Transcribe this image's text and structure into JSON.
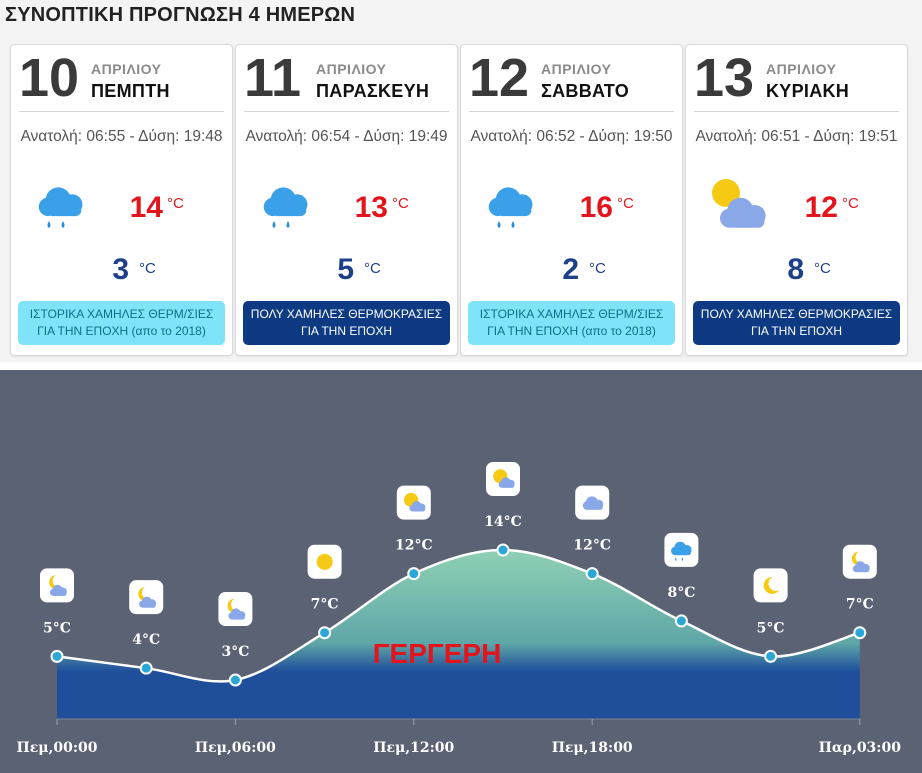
{
  "title": "ΣΥΝΟΠΤΙΚΗ ΠΡΟΓΝΩΣΗ 4 ΗΜΕΡΩΝ",
  "units": {
    "celsius": "°C"
  },
  "days": [
    {
      "day": "10",
      "month": "ΑΠΡΙΛΙΟΥ",
      "weekday": "ΠΕΜΠΤΗ",
      "sun": "Ανατολή: 06:55 - Δύση: 19:48",
      "icon": "rain-cloud-icon",
      "tmax": "14",
      "tmin": "3",
      "badge": {
        "style": "light",
        "line1": "ΙΣΤΟΡΙΚΑ ΧΑΜΗΛΕΣ ΘΕΡΜ/ΣΙΕΣ",
        "line2": "ΓΙΑ ΤΗΝ ΕΠΟΧΗ (απο το 2018)"
      }
    },
    {
      "day": "11",
      "month": "ΑΠΡΙΛΙΟΥ",
      "weekday": "ΠΑΡΑΣΚΕΥΗ",
      "sun": "Ανατολή: 06:54 - Δύση: 19:49",
      "icon": "rain-cloud-icon",
      "tmax": "13",
      "tmin": "5",
      "badge": {
        "style": "dark",
        "line1": "ΠΟΛΥ ΧΑΜΗΛΕΣ ΘΕΡΜΟΚΡΑΣΙΕΣ",
        "line2": "ΓΙΑ ΤΗΝ ΕΠΟΧΗ"
      }
    },
    {
      "day": "12",
      "month": "ΑΠΡΙΛΙΟΥ",
      "weekday": "ΣΑΒΒΑΤΟ",
      "sun": "Ανατολή: 06:52 - Δύση: 19:50",
      "icon": "rain-cloud-icon",
      "tmax": "16",
      "tmin": "2",
      "badge": {
        "style": "light",
        "line1": "ΙΣΤΟΡΙΚΑ ΧΑΜΗΛΕΣ ΘΕΡΜ/ΣΙΕΣ",
        "line2": "ΓΙΑ ΤΗΝ ΕΠΟΧΗ (απο το 2018)"
      }
    },
    {
      "day": "13",
      "month": "ΑΠΡΙΛΙΟΥ",
      "weekday": "ΚΥΡΙΑΚΗ",
      "sun": "Ανατολή: 06:51 - Δύση: 19:51",
      "icon": "partly-cloudy-icon",
      "tmax": "12",
      "tmin": "8",
      "badge": {
        "style": "dark",
        "line1": "ΠΟΛΥ ΧΑΜΗΛΕΣ ΘΕΡΜΟΚΡΑΣΙΕΣ",
        "line2": "ΓΙΑ ΤΗΝ ΕΠΟΧΗ"
      }
    }
  ],
  "colors": {
    "tmax": "#e3141c",
    "tmin": "#1e3f8a",
    "badge_light_bg": "#7fe4f7",
    "badge_dark_bg": "#0d3a82",
    "chart_bg": "#5b6274",
    "area_top": "#8fd0b4",
    "area_bottom": "#1f4e9b"
  },
  "chart_data": {
    "type": "area",
    "location": "ΓΕΡΓΕΡΗ",
    "x_ticks": [
      "Πεμ,00:00",
      "Πεμ,06:00",
      "Πεμ,12:00",
      "Πεμ,18:00",
      "Παρ,03:00"
    ],
    "x_hours": [
      0,
      3,
      6,
      9,
      12,
      15,
      18,
      21,
      24,
      27
    ],
    "y": [
      5,
      4,
      3,
      7,
      12,
      14,
      12,
      8,
      5,
      7
    ],
    "labels": [
      "5°C",
      "4°C",
      "3°C",
      "7°C",
      "12°C",
      "14°C",
      "12°C",
      "8°C",
      "5°C",
      "7°C"
    ],
    "icons": [
      "moon-cloud-icon",
      "moon-cloud-icon",
      "moon-cloud-icon",
      "sun-icon",
      "sun-cloud-icon",
      "sun-cloud-icon",
      "cloud-icon",
      "rain-cloud-icon",
      "moon-icon",
      "moon-cloud-icon"
    ],
    "ylim": [
      -6,
      17
    ],
    "grid": false
  }
}
